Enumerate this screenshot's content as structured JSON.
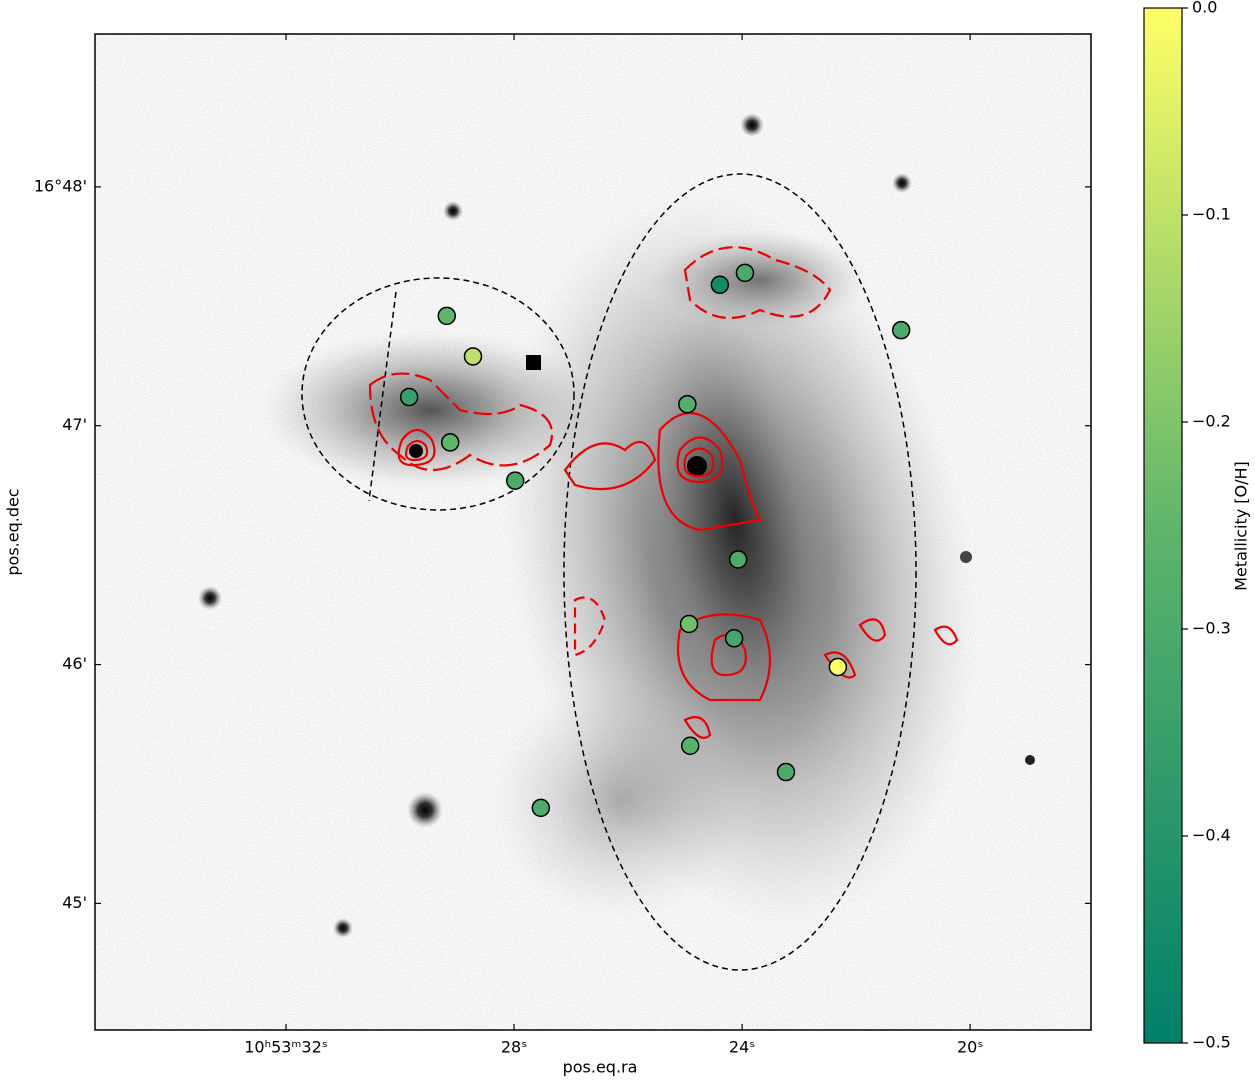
{
  "chart_data": {
    "type": "scatter",
    "xlabel": "pos.eq.ra",
    "ylabel": "pos.eq.dec",
    "colorbar_label": "Metallicity [O/H]",
    "xlim": [
      35.35,
      17.88
    ],
    "ylim": [
      44.47,
      48.64
    ],
    "xticks": [
      {
        "value": 32,
        "label": "10ʰ53ᵐ32ˢ"
      },
      {
        "value": 28,
        "label": "28ˢ"
      },
      {
        "value": 24,
        "label": "24ˢ"
      },
      {
        "value": 20,
        "label": "20ˢ"
      }
    ],
    "yticks": [
      {
        "value": 48,
        "label": "16°48'"
      },
      {
        "value": 47,
        "label": "47'"
      },
      {
        "value": 46,
        "label": "46'"
      },
      {
        "value": 45,
        "label": "45'"
      }
    ],
    "x": [
      29.18,
      28.72,
      29.84,
      29.12,
      27.98,
      24.39,
      23.95,
      21.21,
      24.96,
      24.07,
      24.93,
      24.14,
      22.32,
      24.91,
      23.23,
      27.53
    ],
    "y": [
      47.46,
      47.29,
      47.12,
      46.93,
      46.77,
      47.59,
      47.64,
      47.4,
      47.09,
      46.44,
      46.17,
      46.11,
      45.99,
      45.66,
      45.55,
      45.4
    ],
    "values": [
      -0.25,
      -0.1,
      -0.35,
      -0.25,
      -0.3,
      -0.45,
      -0.3,
      -0.3,
      -0.28,
      -0.3,
      -0.22,
      -0.32,
      0,
      -0.27,
      -0.3,
      -0.3
    ],
    "clim": [
      -0.5,
      0
    ],
    "cticks": [
      {
        "value": 0,
        "label": "0.0"
      },
      {
        "value": -0.1,
        "label": "−0.1"
      },
      {
        "value": -0.2,
        "label": "−0.2"
      },
      {
        "value": -0.3,
        "label": "−0.3"
      },
      {
        "value": -0.4,
        "label": "−0.4"
      },
      {
        "value": -0.5,
        "label": "−0.5"
      }
    ],
    "colormap": [
      "#00806a",
      "#5fb56b",
      "#ffff66"
    ]
  }
}
